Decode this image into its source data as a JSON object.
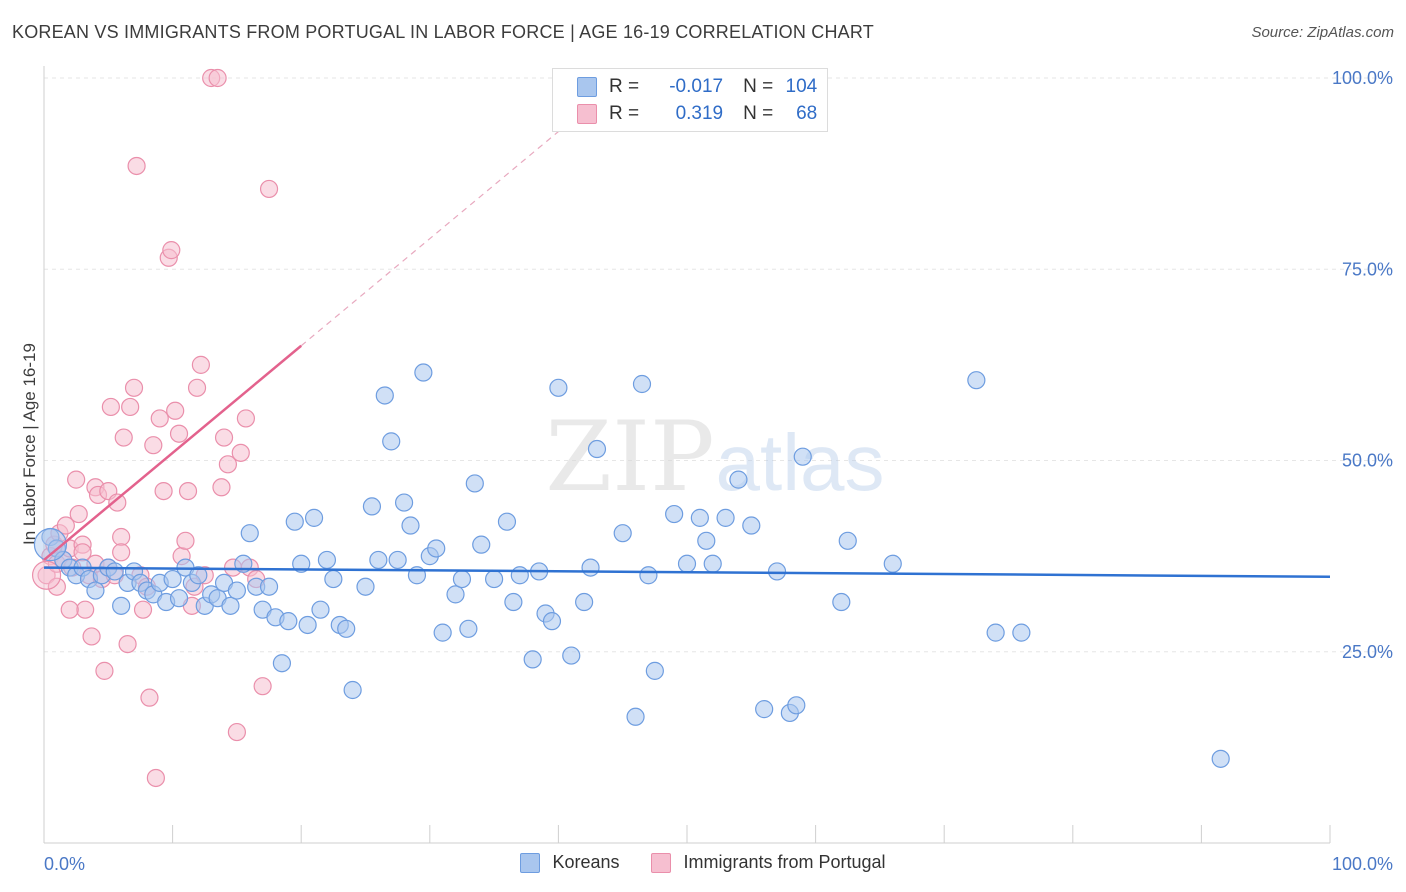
{
  "title": "KOREAN VS IMMIGRANTS FROM PORTUGAL IN LABOR FORCE | AGE 16-19 CORRELATION CHART",
  "source": "Source: ZipAtlas.com",
  "watermark": {
    "zip": "ZIP",
    "atlas": "atlas"
  },
  "legend_top": {
    "rows": [
      {
        "r_label": "R =",
        "r_value": "-0.017",
        "n_label": "N =",
        "n_value": "104"
      },
      {
        "r_label": "R =",
        "r_value": "0.319",
        "n_label": "N =",
        "n_value": "68"
      }
    ]
  },
  "legend_bottom": [
    "Koreans",
    "Immigrants from Portugal"
  ],
  "colors": {
    "koreans_fill": "#a9c6ee",
    "koreans_stroke": "#6e9de0",
    "koreans_line": "#2f72d2",
    "portugal_fill": "#f6bfd0",
    "portugal_stroke": "#ea8fab",
    "portugal_line": "#e3628d",
    "grid": "#e6e6e6",
    "axis_text": "#4a78c6"
  },
  "chart_data": {
    "type": "scatter",
    "title": "KOREAN VS IMMIGRANTS FROM PORTUGAL IN LABOR FORCE | AGE 16-19 CORRELATION CHART",
    "xlabel": "",
    "ylabel": "In Labor Force | Age 16-19",
    "xlim": [
      0,
      100
    ],
    "ylim": [
      0,
      100
    ],
    "x_tick_labels": [
      "0.0%",
      "100.0%"
    ],
    "y_tick_labels": [
      "25.0%",
      "50.0%",
      "75.0%",
      "100.0%"
    ],
    "y_ticks": [
      25,
      50,
      75,
      100
    ],
    "grid": true,
    "legend_position": "top-center",
    "series": [
      {
        "name": "Koreans",
        "r": -0.017,
        "n": 104,
        "trend": {
          "x": [
            0,
            100
          ],
          "y": [
            36.0,
            34.8
          ]
        },
        "points": [
          [
            0.5,
            40.0
          ],
          [
            1.0,
            38.5
          ],
          [
            1.5,
            37.0
          ],
          [
            2.0,
            36.0
          ],
          [
            2.5,
            35.0
          ],
          [
            3.0,
            36.0
          ],
          [
            3.5,
            34.5
          ],
          [
            4.0,
            33.0
          ],
          [
            4.5,
            35.0
          ],
          [
            5.0,
            36.0
          ],
          [
            5.5,
            35.5
          ],
          [
            6.0,
            31.0
          ],
          [
            6.5,
            34.0
          ],
          [
            7.0,
            35.5
          ],
          [
            7.5,
            34.0
          ],
          [
            8.0,
            33.0
          ],
          [
            8.5,
            32.5
          ],
          [
            9.0,
            34.0
          ],
          [
            9.5,
            31.5
          ],
          [
            10.0,
            34.5
          ],
          [
            10.5,
            32.0
          ],
          [
            11.0,
            36.0
          ],
          [
            11.5,
            34.0
          ],
          [
            12.0,
            35.0
          ],
          [
            12.5,
            31.0
          ],
          [
            13.0,
            32.5
          ],
          [
            13.5,
            32.0
          ],
          [
            14.0,
            34.0
          ],
          [
            14.5,
            31.0
          ],
          [
            15.0,
            33.0
          ],
          [
            15.5,
            36.5
          ],
          [
            16.0,
            40.5
          ],
          [
            16.5,
            33.5
          ],
          [
            17.0,
            30.5
          ],
          [
            17.5,
            33.5
          ],
          [
            18.0,
            29.5
          ],
          [
            18.5,
            23.5
          ],
          [
            19.0,
            29.0
          ],
          [
            19.5,
            42.0
          ],
          [
            20.0,
            36.5
          ],
          [
            20.5,
            28.5
          ],
          [
            21.0,
            42.5
          ],
          [
            21.5,
            30.5
          ],
          [
            22.0,
            37.0
          ],
          [
            22.5,
            34.5
          ],
          [
            23.0,
            28.5
          ],
          [
            23.5,
            28.0
          ],
          [
            24.0,
            20.0
          ],
          [
            25.0,
            33.5
          ],
          [
            25.5,
            44.0
          ],
          [
            26.0,
            37.0
          ],
          [
            26.5,
            58.5
          ],
          [
            27.0,
            52.5
          ],
          [
            27.5,
            37.0
          ],
          [
            28.0,
            44.5
          ],
          [
            28.5,
            41.5
          ],
          [
            29.0,
            35.0
          ],
          [
            29.5,
            61.5
          ],
          [
            30.0,
            37.5
          ],
          [
            30.5,
            38.5
          ],
          [
            31.0,
            27.5
          ],
          [
            32.0,
            32.5
          ],
          [
            32.5,
            34.5
          ],
          [
            33.0,
            28.0
          ],
          [
            33.5,
            47.0
          ],
          [
            34.0,
            39.0
          ],
          [
            35.0,
            34.5
          ],
          [
            36.0,
            42.0
          ],
          [
            36.5,
            31.5
          ],
          [
            37.0,
            35.0
          ],
          [
            38.0,
            24.0
          ],
          [
            38.5,
            35.5
          ],
          [
            39.0,
            30.0
          ],
          [
            39.5,
            29.0
          ],
          [
            40.0,
            59.5
          ],
          [
            41.0,
            24.5
          ],
          [
            42.0,
            31.5
          ],
          [
            42.5,
            36.0
          ],
          [
            43.0,
            51.5
          ],
          [
            45.0,
            40.5
          ],
          [
            46.0,
            16.5
          ],
          [
            46.5,
            60.0
          ],
          [
            47.0,
            35.0
          ],
          [
            47.5,
            22.5
          ],
          [
            49.0,
            43.0
          ],
          [
            50.0,
            36.5
          ],
          [
            51.0,
            42.5
          ],
          [
            51.5,
            39.5
          ],
          [
            52.0,
            36.5
          ],
          [
            53.0,
            42.5
          ],
          [
            54.0,
            47.5
          ],
          [
            55.0,
            41.5
          ],
          [
            56.0,
            17.5
          ],
          [
            57.0,
            35.5
          ],
          [
            58.0,
            17.0
          ],
          [
            58.5,
            18.0
          ],
          [
            59.0,
            50.5
          ],
          [
            62.0,
            31.5
          ],
          [
            62.5,
            39.5
          ],
          [
            66.0,
            36.5
          ],
          [
            72.5,
            60.5
          ],
          [
            74.0,
            27.5
          ],
          [
            76.0,
            27.5
          ],
          [
            91.5,
            11.0
          ]
        ]
      },
      {
        "name": "Immigrants from Portugal",
        "r": 0.319,
        "n": 68,
        "trend": {
          "x": [
            0,
            20
          ],
          "y": [
            37.0,
            65.0
          ]
        },
        "points": [
          [
            0.2,
            35.0
          ],
          [
            0.5,
            37.5
          ],
          [
            0.8,
            39.0
          ],
          [
            1.0,
            36.5
          ],
          [
            1.2,
            40.5
          ],
          [
            1.5,
            37.0
          ],
          [
            1.7,
            41.5
          ],
          [
            2.0,
            38.5
          ],
          [
            2.2,
            36.0
          ],
          [
            2.5,
            47.5
          ],
          [
            2.7,
            43.0
          ],
          [
            3.0,
            39.0
          ],
          [
            3.2,
            30.5
          ],
          [
            3.5,
            35.0
          ],
          [
            3.7,
            27.0
          ],
          [
            4.0,
            46.5
          ],
          [
            4.2,
            45.5
          ],
          [
            4.5,
            34.5
          ],
          [
            4.7,
            22.5
          ],
          [
            5.0,
            46.0
          ],
          [
            5.2,
            57.0
          ],
          [
            5.5,
            35.0
          ],
          [
            5.7,
            44.5
          ],
          [
            6.0,
            40.0
          ],
          [
            6.2,
            53.0
          ],
          [
            6.5,
            26.0
          ],
          [
            6.7,
            57.0
          ],
          [
            7.0,
            59.5
          ],
          [
            7.2,
            88.5
          ],
          [
            7.5,
            35.0
          ],
          [
            7.7,
            30.5
          ],
          [
            8.0,
            33.5
          ],
          [
            8.2,
            19.0
          ],
          [
            8.5,
            52.0
          ],
          [
            8.7,
            8.5
          ],
          [
            9.0,
            55.5
          ],
          [
            9.3,
            46.0
          ],
          [
            9.7,
            76.5
          ],
          [
            9.9,
            77.5
          ],
          [
            10.2,
            56.5
          ],
          [
            10.5,
            53.5
          ],
          [
            10.7,
            37.5
          ],
          [
            11.0,
            39.5
          ],
          [
            11.2,
            46.0
          ],
          [
            11.5,
            31.0
          ],
          [
            11.7,
            33.5
          ],
          [
            11.9,
            59.5
          ],
          [
            12.2,
            62.5
          ],
          [
            12.5,
            35.0
          ],
          [
            13.0,
            100.0
          ],
          [
            13.5,
            100.0
          ],
          [
            13.8,
            46.5
          ],
          [
            14.0,
            53.0
          ],
          [
            14.3,
            49.5
          ],
          [
            14.7,
            36.0
          ],
          [
            15.0,
            14.5
          ],
          [
            15.3,
            51.0
          ],
          [
            15.7,
            55.5
          ],
          [
            16.0,
            36.0
          ],
          [
            16.5,
            34.5
          ],
          [
            17.0,
            20.5
          ],
          [
            17.5,
            85.5
          ],
          [
            2.0,
            30.5
          ],
          [
            3.0,
            38.0
          ],
          [
            4.0,
            36.5
          ],
          [
            5.0,
            36.0
          ],
          [
            1.0,
            33.5
          ],
          [
            6.0,
            38.0
          ]
        ]
      }
    ]
  }
}
